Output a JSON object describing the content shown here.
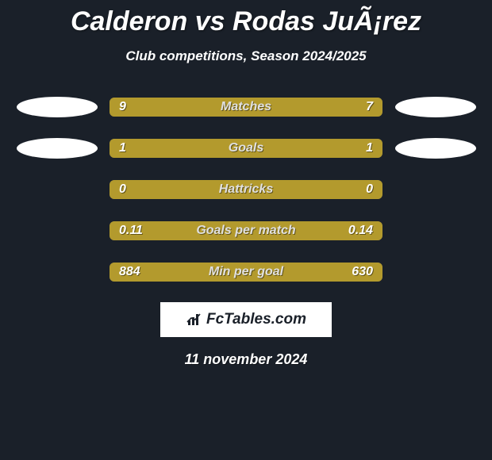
{
  "header": {
    "title": "Calderon vs Rodas JuÃ¡rez",
    "subtitle": "Club competitions, Season 2024/2025"
  },
  "chart": {
    "type": "stat-bars",
    "bar_bg": "#b39a2d",
    "neutral_bg": "#b39a2d",
    "text_color": "#ffffff",
    "shadow_color": "rgba(0,0,0,0.45)",
    "rows": [
      {
        "label": "Matches",
        "left": "9",
        "right": "7",
        "left_pct": 56,
        "right_pct": 44,
        "badge_left": true,
        "badge_right": true
      },
      {
        "label": "Goals",
        "left": "1",
        "right": "1",
        "left_pct": 50,
        "right_pct": 50,
        "badge_left": true,
        "badge_right": true
      },
      {
        "label": "Hattricks",
        "left": "0",
        "right": "0",
        "left_pct": 50,
        "right_pct": 50,
        "badge_left": false,
        "badge_right": false
      },
      {
        "label": "Goals per match",
        "left": "0.11",
        "right": "0.14",
        "left_pct": 44,
        "right_pct": 56,
        "badge_left": false,
        "badge_right": false
      },
      {
        "label": "Min per goal",
        "left": "884",
        "right": "630",
        "left_pct": 58,
        "right_pct": 42,
        "badge_left": false,
        "badge_right": false
      }
    ]
  },
  "footer": {
    "brand": "FcTables.com",
    "date": "11 november 2024"
  },
  "colors": {
    "page_bg": "#1a2029",
    "bar_color": "#b39a2d",
    "badge_color": "#ffffff",
    "logo_bg": "#ffffff"
  }
}
